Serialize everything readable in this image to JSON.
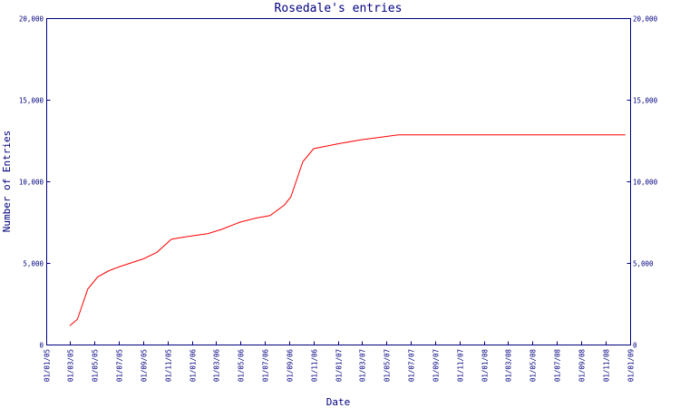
{
  "chart_data": {
    "type": "line",
    "title": "Rosedale's entries",
    "xlabel": "Date",
    "ylabel": "Number of Entries",
    "ylim": [
      0,
      20000
    ],
    "y_ticks": [
      {
        "value": 0,
        "label": "0"
      },
      {
        "value": 5000,
        "label": "5,000"
      },
      {
        "value": 10000,
        "label": "10,000"
      },
      {
        "value": 15000,
        "label": "15,000"
      },
      {
        "value": 20000,
        "label": "20,000"
      }
    ],
    "x_ticks": [
      "01/01/05",
      "01/03/05",
      "01/05/05",
      "01/07/05",
      "01/09/05",
      "01/11/05",
      "01/01/06",
      "01/03/06",
      "01/05/06",
      "01/07/06",
      "01/09/06",
      "01/11/06",
      "01/01/07",
      "01/03/07",
      "01/05/07",
      "01/07/07",
      "01/09/07",
      "01/11/07",
      "01/01/08",
      "01/03/08",
      "01/05/08",
      "01/07/08",
      "01/09/08",
      "01/11/08",
      "01/01/09"
    ],
    "grid": false,
    "series": [
      {
        "color": "#ff0000",
        "points": [
          {
            "date": "2005-03-01",
            "y": 1150
          },
          {
            "date": "2005-03-20",
            "y": 1550
          },
          {
            "date": "2005-04-15",
            "y": 3400
          },
          {
            "date": "2005-05-10",
            "y": 4150
          },
          {
            "date": "2005-06-05",
            "y": 4500
          },
          {
            "date": "2005-07-01",
            "y": 4750
          },
          {
            "date": "2005-08-01",
            "y": 5000
          },
          {
            "date": "2005-09-01",
            "y": 5250
          },
          {
            "date": "2005-10-05",
            "y": 5650
          },
          {
            "date": "2005-11-10",
            "y": 6450
          },
          {
            "date": "2005-12-15",
            "y": 6600
          },
          {
            "date": "2006-02-10",
            "y": 6800
          },
          {
            "date": "2006-03-15",
            "y": 7050
          },
          {
            "date": "2006-05-01",
            "y": 7500
          },
          {
            "date": "2006-06-10",
            "y": 7750
          },
          {
            "date": "2006-07-15",
            "y": 7900
          },
          {
            "date": "2006-08-20",
            "y": 8550
          },
          {
            "date": "2006-09-05",
            "y": 9050
          },
          {
            "date": "2006-10-05",
            "y": 11200
          },
          {
            "date": "2006-11-01",
            "y": 12000
          },
          {
            "date": "2007-01-01",
            "y": 12300
          },
          {
            "date": "2007-03-01",
            "y": 12550
          },
          {
            "date": "2007-06-01",
            "y": 12850
          },
          {
            "date": "2008-12-20",
            "y": 12850
          }
        ]
      }
    ]
  }
}
